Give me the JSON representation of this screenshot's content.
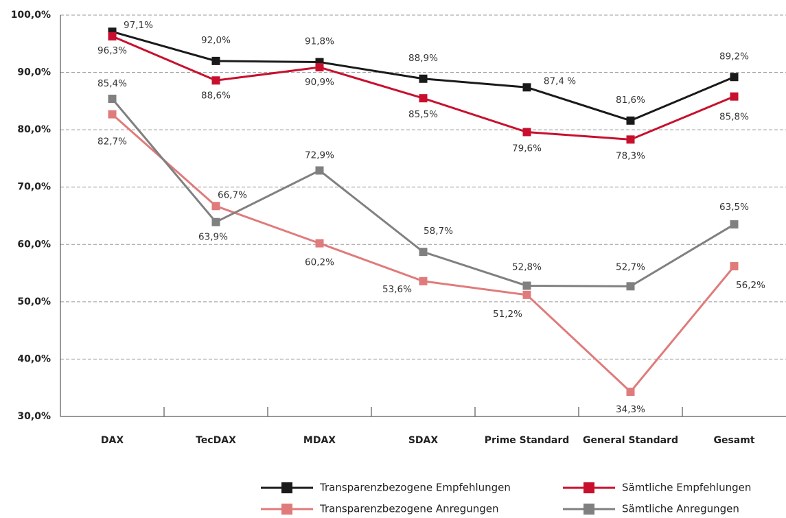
{
  "chart_data": {
    "type": "line",
    "categories": [
      "DAX",
      "TecDAX",
      "MDAX",
      "SDAX",
      "Prime Standard",
      "General Standard",
      "Gesamt"
    ],
    "series": [
      {
        "name": "Transparenzbezogene Empfehlungen",
        "color": "#1a1a1a",
        "values": [
          97.1,
          92.0,
          91.8,
          88.9,
          87.4,
          81.6,
          89.2
        ],
        "value_labels": [
          "97,1%",
          "92,0%",
          "91,8%",
          "88,9%",
          "87,4 %",
          "81,6%",
          "89,2%"
        ]
      },
      {
        "name": "Sämtliche Empfehlungen",
        "color": "#c8102e",
        "values": [
          96.3,
          88.6,
          90.9,
          85.5,
          79.6,
          78.3,
          85.8
        ],
        "value_labels": [
          "96,3%",
          "88,6%",
          "90,9%",
          "85,5%",
          "79,6%",
          "78,3%",
          "85,8%"
        ]
      },
      {
        "name": "Transparenzbezogene Anregungen",
        "color": "#e07b7b",
        "values": [
          82.7,
          66.7,
          60.2,
          53.6,
          51.2,
          34.3,
          56.2
        ],
        "value_labels": [
          "82,7%",
          "66,7%",
          "60,2%",
          "53,6%",
          "51,2%",
          "34,3%",
          "56,2%"
        ]
      },
      {
        "name": "Sämtliche Anregungen",
        "color": "#808080",
        "values": [
          85.4,
          63.9,
          72.9,
          58.7,
          52.8,
          52.7,
          63.5
        ],
        "value_labels": [
          "85,4%",
          "63,9%",
          "72,9%",
          "58,7%",
          "52,8%",
          "52,7%",
          "63,5%"
        ]
      }
    ],
    "ylim": [
      30,
      100
    ],
    "yticks": [
      {
        "value": 30,
        "label": "30,0%"
      },
      {
        "value": 40,
        "label": "40,0%"
      },
      {
        "value": 50,
        "label": "50,0%"
      },
      {
        "value": 60,
        "label": "60,0%"
      },
      {
        "value": 70,
        "label": "70,0%"
      },
      {
        "value": 80,
        "label": "80,0%"
      },
      {
        "value": 90,
        "label": "90,0%"
      },
      {
        "value": 100,
        "label": "100,0%"
      }
    ],
    "grid": true
  }
}
